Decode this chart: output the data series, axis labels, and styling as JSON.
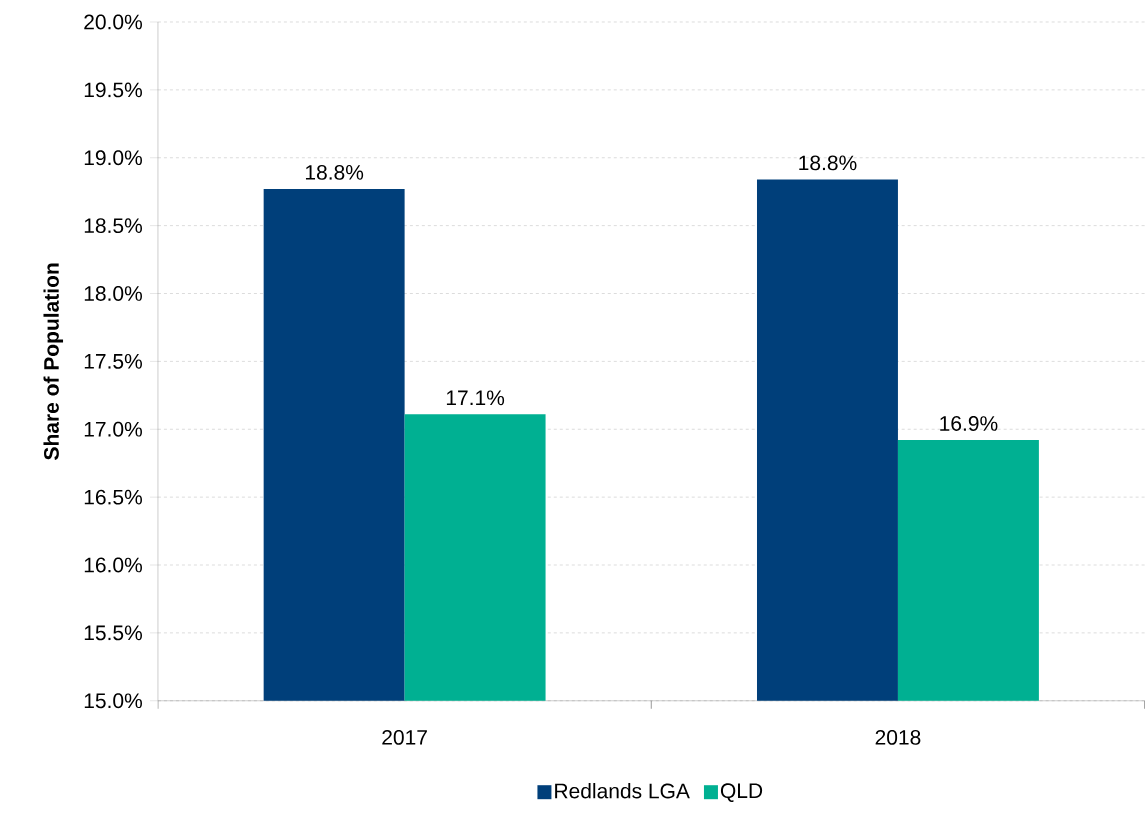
{
  "chart_data": {
    "type": "bar",
    "ylabel": "Share of Population",
    "categories": [
      "2017",
      "2018"
    ],
    "series": [
      {
        "name": "Redlands LGA",
        "color": "#003f7a",
        "values": [
          18.77,
          18.84
        ],
        "value_labels": [
          "18.8%",
          "18.8%"
        ]
      },
      {
        "name": "QLD",
        "color": "#00b092",
        "values": [
          17.11,
          16.92
        ],
        "value_labels": [
          "17.1%",
          "16.9%"
        ]
      }
    ],
    "ylim": [
      15,
      20
    ],
    "yticks": [
      {
        "value": 15,
        "label": "15.0%"
      },
      {
        "value": 15.5,
        "label": "15.5%"
      },
      {
        "value": 16,
        "label": "16.0%"
      },
      {
        "value": 16.5,
        "label": "16.5%"
      },
      {
        "value": 17,
        "label": "17.0%"
      },
      {
        "value": 17.5,
        "label": "17.5%"
      },
      {
        "value": 18,
        "label": "18.0%"
      },
      {
        "value": 18.5,
        "label": "18.5%"
      },
      {
        "value": 19,
        "label": "19.0%"
      },
      {
        "value": 19.5,
        "label": "19.5%"
      },
      {
        "value": 20,
        "label": "20.0%"
      }
    ],
    "grid": "y",
    "legend": "bottom"
  }
}
